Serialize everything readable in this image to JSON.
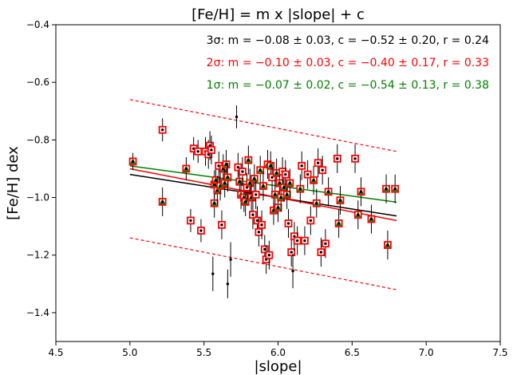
{
  "chart_data": {
    "type": "scatter",
    "title": "[Fe/H] = m x |slope| + c",
    "xlabel": "|slope|",
    "ylabel": "[Fe/H] dex",
    "xlim": [
      4.5,
      7.5
    ],
    "ylim": [
      -1.5,
      -0.4
    ],
    "x_ticks": [
      "4.5",
      "5.0",
      "5.5",
      "6.0",
      "6.5",
      "7.0",
      "7.5"
    ],
    "y_ticks": [
      "−1.4",
      "−1.2",
      "−1.0",
      "−0.8",
      "−0.6",
      "−0.4"
    ],
    "grid": false,
    "fits": [
      {
        "text": "3σ: m = −0.08 ± 0.03, c = −0.52 ± 0.20, r = 0.24",
        "color": "#000000",
        "m": -0.08,
        "c": -0.52,
        "x_range": [
          5.0,
          6.8
        ]
      },
      {
        "text": "2σ: m = −0.10 ± 0.03, c = −0.40 ± 0.17, r = 0.33",
        "color": "#ff0000",
        "m": -0.1,
        "c": -0.4,
        "x_range": [
          5.0,
          6.8
        ]
      },
      {
        "text": "1σ: m = −0.07 ± 0.02, c = −0.54 ± 0.13, r = 0.38",
        "color": "#008000",
        "m": -0.07,
        "c": -0.54,
        "x_range": [
          5.0,
          6.8
        ]
      }
    ],
    "bounds": {
      "color": "#ff0000",
      "style": "dashed",
      "upper": [
        [
          5.0,
          -0.66
        ],
        [
          6.8,
          -0.84
        ]
      ],
      "lower": [
        [
          5.0,
          -1.14
        ],
        [
          6.8,
          -1.32
        ]
      ]
    },
    "points": [
      {
        "x": 5.02,
        "y": -0.875,
        "e": 0.03,
        "c": 3
      },
      {
        "x": 5.22,
        "y": -0.765,
        "e": 0.04,
        "c": 2
      },
      {
        "x": 5.22,
        "y": -1.015,
        "e": 0.05,
        "c": 3
      },
      {
        "x": 5.38,
        "y": -0.9,
        "e": 0.04,
        "c": 3
      },
      {
        "x": 5.41,
        "y": -1.08,
        "e": 0.04,
        "c": 2
      },
      {
        "x": 5.43,
        "y": -0.83,
        "e": 0.04,
        "c": 2
      },
      {
        "x": 5.46,
        "y": -0.84,
        "e": 0.04,
        "c": 2
      },
      {
        "x": 5.48,
        "y": -1.115,
        "e": 0.04,
        "c": 2
      },
      {
        "x": 5.51,
        "y": -0.84,
        "e": 0.05,
        "c": 2
      },
      {
        "x": 5.53,
        "y": -0.85,
        "e": 0.05,
        "c": 2
      },
      {
        "x": 5.54,
        "y": -0.82,
        "e": 0.05,
        "c": 2
      },
      {
        "x": 5.55,
        "y": -0.835,
        "e": 0.05,
        "c": 2
      },
      {
        "x": 5.56,
        "y": -1.265,
        "e": 0.06,
        "c": 1
      },
      {
        "x": 5.57,
        "y": -0.955,
        "e": 0.05,
        "c": 3
      },
      {
        "x": 5.57,
        "y": -1.02,
        "e": 0.05,
        "c": 3
      },
      {
        "x": 5.58,
        "y": -0.94,
        "e": 0.05,
        "c": 3
      },
      {
        "x": 5.59,
        "y": -0.975,
        "e": 0.05,
        "c": 3
      },
      {
        "x": 5.6,
        "y": -0.89,
        "e": 0.05,
        "c": 2
      },
      {
        "x": 5.61,
        "y": -0.96,
        "e": 0.05,
        "c": 3
      },
      {
        "x": 5.62,
        "y": -1.095,
        "e": 0.05,
        "c": 2
      },
      {
        "x": 5.63,
        "y": -0.9,
        "e": 0.05,
        "c": 3
      },
      {
        "x": 5.64,
        "y": -0.95,
        "e": 0.05,
        "c": 3
      },
      {
        "x": 5.65,
        "y": -0.885,
        "e": 0.05,
        "c": 3
      },
      {
        "x": 5.66,
        "y": -0.93,
        "e": 0.05,
        "c": 3
      },
      {
        "x": 5.66,
        "y": -1.3,
        "e": 0.05,
        "c": 1
      },
      {
        "x": 5.68,
        "y": -1.215,
        "e": 0.06,
        "c": 1
      },
      {
        "x": 5.72,
        "y": -0.72,
        "e": 0.04,
        "c": 1
      },
      {
        "x": 5.73,
        "y": -0.895,
        "e": 0.05,
        "c": 2
      },
      {
        "x": 5.74,
        "y": -0.945,
        "e": 0.05,
        "c": 3
      },
      {
        "x": 5.75,
        "y": -0.99,
        "e": 0.05,
        "c": 3
      },
      {
        "x": 5.76,
        "y": -0.91,
        "e": 0.05,
        "c": 2
      },
      {
        "x": 5.77,
        "y": -1.0,
        "e": 0.05,
        "c": 3
      },
      {
        "x": 5.78,
        "y": -1.015,
        "e": 0.05,
        "c": 3
      },
      {
        "x": 5.79,
        "y": -0.965,
        "e": 0.05,
        "c": 2
      },
      {
        "x": 5.8,
        "y": -0.87,
        "e": 0.05,
        "c": 3
      },
      {
        "x": 5.81,
        "y": -0.95,
        "e": 0.05,
        "c": 3
      },
      {
        "x": 5.82,
        "y": -1.0,
        "e": 0.05,
        "c": 3
      },
      {
        "x": 5.83,
        "y": -1.06,
        "e": 0.05,
        "c": 2
      },
      {
        "x": 5.84,
        "y": -0.935,
        "e": 0.05,
        "c": 3
      },
      {
        "x": 5.85,
        "y": -0.99,
        "e": 0.05,
        "c": 2
      },
      {
        "x": 5.86,
        "y": -1.08,
        "e": 0.05,
        "c": 2
      },
      {
        "x": 5.87,
        "y": -1.12,
        "e": 0.05,
        "c": 2
      },
      {
        "x": 5.88,
        "y": -0.905,
        "e": 0.05,
        "c": 3
      },
      {
        "x": 5.89,
        "y": -1.095,
        "e": 0.05,
        "c": 2
      },
      {
        "x": 5.9,
        "y": -0.96,
        "e": 0.05,
        "c": 3
      },
      {
        "x": 5.91,
        "y": -1.18,
        "e": 0.05,
        "c": 2
      },
      {
        "x": 5.92,
        "y": -1.215,
        "e": 0.05,
        "c": 2
      },
      {
        "x": 5.93,
        "y": -0.885,
        "e": 0.05,
        "c": 3
      },
      {
        "x": 5.94,
        "y": -1.2,
        "e": 0.05,
        "c": 2
      },
      {
        "x": 5.95,
        "y": -0.89,
        "e": 0.05,
        "c": 3
      },
      {
        "x": 5.96,
        "y": -0.93,
        "e": 0.05,
        "c": 2
      },
      {
        "x": 5.97,
        "y": -1.045,
        "e": 0.05,
        "c": 3
      },
      {
        "x": 5.98,
        "y": -0.99,
        "e": 0.05,
        "c": 3
      },
      {
        "x": 5.99,
        "y": -0.915,
        "e": 0.05,
        "c": 3
      },
      {
        "x": 6.0,
        "y": -1.035,
        "e": 0.05,
        "c": 3
      },
      {
        "x": 6.01,
        "y": -0.95,
        "e": 0.05,
        "c": 3
      },
      {
        "x": 6.02,
        "y": -1.0,
        "e": 0.05,
        "c": 3
      },
      {
        "x": 6.03,
        "y": -0.91,
        "e": 0.05,
        "c": 2
      },
      {
        "x": 6.04,
        "y": -0.965,
        "e": 0.05,
        "c": 3
      },
      {
        "x": 6.05,
        "y": -0.92,
        "e": 0.05,
        "c": 2
      },
      {
        "x": 6.06,
        "y": -0.99,
        "e": 0.05,
        "c": 3
      },
      {
        "x": 6.07,
        "y": -1.09,
        "e": 0.05,
        "c": 2
      },
      {
        "x": 6.08,
        "y": -0.95,
        "e": 0.05,
        "c": 3
      },
      {
        "x": 6.09,
        "y": -1.19,
        "e": 0.05,
        "c": 2
      },
      {
        "x": 6.1,
        "y": -1.255,
        "e": 0.06,
        "c": 1
      },
      {
        "x": 6.11,
        "y": -1.135,
        "e": 0.05,
        "c": 2
      },
      {
        "x": 6.13,
        "y": -1.15,
        "e": 0.05,
        "c": 2
      },
      {
        "x": 6.15,
        "y": -0.97,
        "e": 0.05,
        "c": 3
      },
      {
        "x": 6.16,
        "y": -0.89,
        "e": 0.05,
        "c": 2
      },
      {
        "x": 6.18,
        "y": -1.15,
        "e": 0.05,
        "c": 2
      },
      {
        "x": 6.2,
        "y": -0.92,
        "e": 0.05,
        "c": 2
      },
      {
        "x": 6.22,
        "y": -1.08,
        "e": 0.05,
        "c": 2
      },
      {
        "x": 6.24,
        "y": -0.94,
        "e": 0.05,
        "c": 3
      },
      {
        "x": 6.26,
        "y": -1.02,
        "e": 0.05,
        "c": 3
      },
      {
        "x": 6.27,
        "y": -0.88,
        "e": 0.05,
        "c": 2
      },
      {
        "x": 6.29,
        "y": -1.19,
        "e": 0.05,
        "c": 2
      },
      {
        "x": 6.3,
        "y": -0.905,
        "e": 0.05,
        "c": 2
      },
      {
        "x": 6.32,
        "y": -1.16,
        "e": 0.05,
        "c": 2
      },
      {
        "x": 6.34,
        "y": -0.98,
        "e": 0.05,
        "c": 3
      },
      {
        "x": 6.4,
        "y": -0.865,
        "e": 0.05,
        "c": 2
      },
      {
        "x": 6.41,
        "y": -1.09,
        "e": 0.05,
        "c": 3
      },
      {
        "x": 6.42,
        "y": -1.01,
        "e": 0.05,
        "c": 3
      },
      {
        "x": 6.52,
        "y": -0.865,
        "e": 0.05,
        "c": 2
      },
      {
        "x": 6.54,
        "y": -1.06,
        "e": 0.05,
        "c": 3
      },
      {
        "x": 6.56,
        "y": -0.98,
        "e": 0.05,
        "c": 3
      },
      {
        "x": 6.63,
        "y": -1.075,
        "e": 0.05,
        "c": 3
      },
      {
        "x": 6.73,
        "y": -0.97,
        "e": 0.05,
        "c": 3
      },
      {
        "x": 6.74,
        "y": -1.165,
        "e": 0.05,
        "c": 3
      },
      {
        "x": 6.79,
        "y": -0.97,
        "e": 0.05,
        "c": 3
      }
    ]
  }
}
